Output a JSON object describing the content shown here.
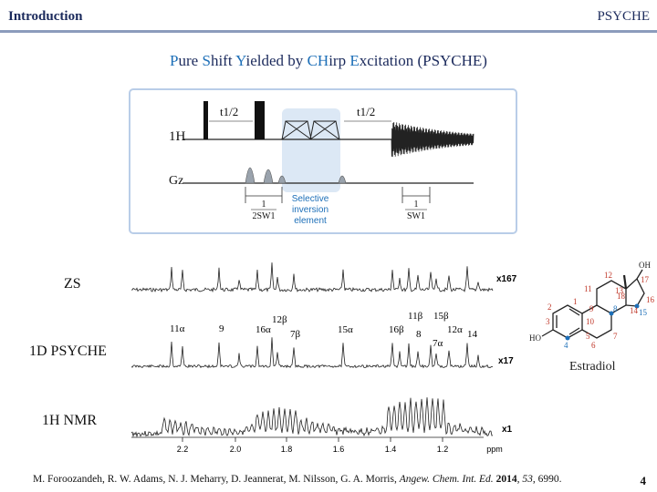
{
  "header": {
    "section": "Introduction",
    "topic": "PSYCHE"
  },
  "title": {
    "parts": [
      {
        "text": "P",
        "hl": true
      },
      {
        "text": "ure ",
        "hl": false
      },
      {
        "text": "S",
        "hl": true
      },
      {
        "text": "hift ",
        "hl": false
      },
      {
        "text": "Y",
        "hl": true
      },
      {
        "text": "ielded by ",
        "hl": false
      },
      {
        "text": "CH",
        "hl": true
      },
      {
        "text": "irp  ",
        "hl": false
      },
      {
        "text": "E",
        "hl": true
      },
      {
        "text": "xcitation (PSYCHE)",
        "hl": false
      }
    ]
  },
  "pulse_sequence": {
    "channel_h": "1H",
    "channel_g": "Gz",
    "t1_left": "t1/2",
    "t1_right": "t1/2",
    "selective_element": [
      "Selective",
      "inversion",
      "element"
    ],
    "frac_left_num": "1",
    "frac_left_den": "2SW1",
    "frac_right_num": "1",
    "frac_right_den": "SW1"
  },
  "spectra": {
    "rows": [
      {
        "label": "ZS",
        "scale": "x167"
      },
      {
        "label": "1D PSYCHE",
        "scale": "x17"
      },
      {
        "label": "1H NMR",
        "scale": "x1"
      }
    ],
    "peak_labels": [
      "11α",
      "9",
      "16α",
      "12β",
      "7β",
      "15α",
      "16β",
      "11β",
      "8",
      "15β",
      "7α",
      "12α",
      "14"
    ],
    "axis_ticks": [
      "2.2",
      "2.0",
      "1.8",
      "1.6",
      "1.4",
      "1.2"
    ],
    "axis_unit": "ppm"
  },
  "molecule": {
    "name": "Estradiol",
    "atom_labels": [
      "OH",
      "12",
      "13",
      "17",
      "16",
      "11",
      "18",
      "15",
      "14",
      "8",
      "9",
      "1",
      "2",
      "3",
      "4",
      "5",
      "6",
      "7",
      "10",
      "HO"
    ]
  },
  "citation": {
    "authors": "M. Foroozandeh, R. W. Adams, N. J. Meharry, D. Jeannerat, M. Nilsson, G. A. Morris, ",
    "journal": "Angew. Chem. Int. Ed.",
    "year": "2014",
    "volume": "53",
    "pages": ", 6990."
  },
  "page_number": "4",
  "colors": {
    "accent": "#1d6fb8",
    "header_text": "#1b2a5c",
    "peak_label": "#c0392b",
    "selective_box": "#dce8f5"
  }
}
